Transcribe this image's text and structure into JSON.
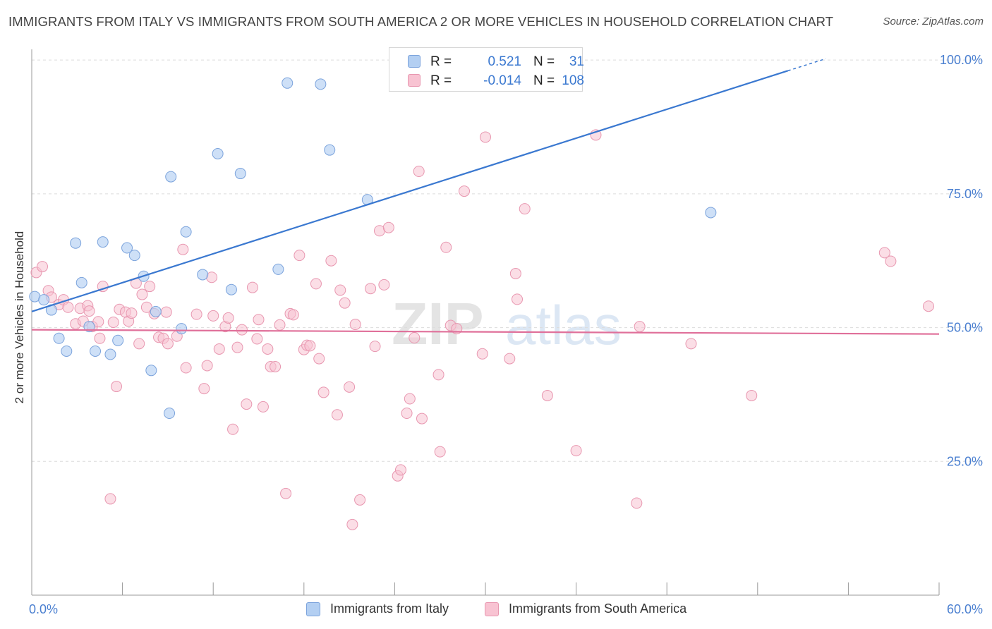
{
  "header": {
    "title": "IMMIGRANTS FROM ITALY VS IMMIGRANTS FROM SOUTH AMERICA 2 OR MORE VEHICLES IN HOUSEHOLD CORRELATION CHART",
    "source": "Source: ZipAtlas.com"
  },
  "watermark": {
    "zip": "ZIP",
    "atlas": "atlas"
  },
  "legend": {
    "rows": [
      {
        "r_label": "R =",
        "r_value": "0.521",
        "n_label": "N =",
        "n_value": "31"
      },
      {
        "r_label": "R =",
        "r_value": "-0.014",
        "n_label": "N =",
        "n_value": "108"
      }
    ]
  },
  "bottom_legend": {
    "italy": "Immigrants from Italy",
    "south_america": "Immigrants from South America"
  },
  "colors": {
    "italy_fill": "#b3cff2",
    "italy_stroke": "#7ba3dc",
    "italy_line": "#3a78d0",
    "sa_fill": "#f8c3d2",
    "sa_stroke": "#e897b0",
    "sa_line": "#e0709a",
    "grid": "#dcdcdc",
    "tick_label": "#4a7fd0",
    "r_value": "#3a78d0"
  },
  "chart_data": {
    "type": "scatter",
    "title": "IMMIGRANTS FROM ITALY VS IMMIGRANTS FROM SOUTH AMERICA 2 OR MORE VEHICLES IN HOUSEHOLD CORRELATION CHART",
    "xlabel": "",
    "ylabel": "2 or more Vehicles in Household",
    "xlim": [
      0,
      60
    ],
    "ylim": [
      0,
      102
    ],
    "x_tick_labels": [
      {
        "value": 0,
        "label": "0.0%"
      },
      {
        "value": 60,
        "label": "60.0%"
      }
    ],
    "x_minor_ticks": [
      6,
      12,
      18,
      24,
      30,
      36,
      42,
      48,
      54,
      60
    ],
    "y_tick_labels": [
      {
        "value": 25,
        "label": "25.0%"
      },
      {
        "value": 50,
        "label": "50.0%"
      },
      {
        "value": 75,
        "label": "75.0%"
      },
      {
        "value": 100,
        "label": "100.0%"
      }
    ],
    "grid": true,
    "series": [
      {
        "name": "Immigrants from Italy",
        "R": 0.521,
        "N": 31,
        "trend": {
          "x0": 0,
          "y0": 53.0,
          "x1": 50,
          "y1": 98.0,
          "dash_to_x": 52.5
        },
        "points": [
          [
            0.2,
            55.8
          ],
          [
            1.3,
            53.3
          ],
          [
            0.8,
            55.2
          ],
          [
            1.8,
            48.0
          ],
          [
            2.3,
            45.6
          ],
          [
            2.9,
            65.8
          ],
          [
            3.3,
            58.4
          ],
          [
            3.8,
            50.2
          ],
          [
            4.2,
            45.6
          ],
          [
            4.7,
            66.0
          ],
          [
            5.2,
            45.0
          ],
          [
            5.7,
            47.6
          ],
          [
            6.3,
            64.9
          ],
          [
            6.8,
            63.5
          ],
          [
            7.4,
            59.6
          ],
          [
            7.9,
            42.0
          ],
          [
            8.2,
            53.0
          ],
          [
            9.2,
            78.2
          ],
          [
            9.1,
            34.0
          ],
          [
            9.9,
            49.8
          ],
          [
            10.2,
            67.9
          ],
          [
            11.3,
            59.9
          ],
          [
            12.3,
            82.5
          ],
          [
            13.2,
            57.1
          ],
          [
            13.8,
            78.8
          ],
          [
            16.3,
            60.9
          ],
          [
            16.9,
            95.7
          ],
          [
            19.1,
            95.5
          ],
          [
            19.7,
            83.2
          ],
          [
            22.2,
            73.9
          ],
          [
            44.9,
            71.5
          ]
        ]
      },
      {
        "name": "Immigrants from South America",
        "R": -0.014,
        "N": 108,
        "trend": {
          "x0": 0,
          "y0": 49.6,
          "x1": 60,
          "y1": 48.8
        },
        "points": [
          [
            0.3,
            60.3
          ],
          [
            0.7,
            61.4
          ],
          [
            1.1,
            56.9
          ],
          [
            1.3,
            55.7
          ],
          [
            1.8,
            54.3
          ],
          [
            2.1,
            55.2
          ],
          [
            2.4,
            53.8
          ],
          [
            2.9,
            50.7
          ],
          [
            3.2,
            53.6
          ],
          [
            3.4,
            51.2
          ],
          [
            3.7,
            54.1
          ],
          [
            3.8,
            53.1
          ],
          [
            4.0,
            50.2
          ],
          [
            4.4,
            51.1
          ],
          [
            4.5,
            48.0
          ],
          [
            4.7,
            57.7
          ],
          [
            5.2,
            18.0
          ],
          [
            5.4,
            51.0
          ],
          [
            5.6,
            39.0
          ],
          [
            5.8,
            53.4
          ],
          [
            6.2,
            52.9
          ],
          [
            6.4,
            51.2
          ],
          [
            6.6,
            52.7
          ],
          [
            6.9,
            58.3
          ],
          [
            7.1,
            47.0
          ],
          [
            7.3,
            56.2
          ],
          [
            7.6,
            53.8
          ],
          [
            7.8,
            57.7
          ],
          [
            8.1,
            52.6
          ],
          [
            8.4,
            48.2
          ],
          [
            8.7,
            48.0
          ],
          [
            8.9,
            52.9
          ],
          [
            9.0,
            47.0
          ],
          [
            9.6,
            48.4
          ],
          [
            10.0,
            64.6
          ],
          [
            10.2,
            42.5
          ],
          [
            10.9,
            52.5
          ],
          [
            11.4,
            38.6
          ],
          [
            11.6,
            42.9
          ],
          [
            11.9,
            59.4
          ],
          [
            12.0,
            52.2
          ],
          [
            12.4,
            46.0
          ],
          [
            12.8,
            50.2
          ],
          [
            13.0,
            51.8
          ],
          [
            13.3,
            31.0
          ],
          [
            13.6,
            46.3
          ],
          [
            13.9,
            49.6
          ],
          [
            14.2,
            35.7
          ],
          [
            14.6,
            57.5
          ],
          [
            14.9,
            47.9
          ],
          [
            15.0,
            51.5
          ],
          [
            15.3,
            35.2
          ],
          [
            15.6,
            46.0
          ],
          [
            15.8,
            42.7
          ],
          [
            16.1,
            42.7
          ],
          [
            16.4,
            50.5
          ],
          [
            16.8,
            19.0
          ],
          [
            17.1,
            52.6
          ],
          [
            17.3,
            52.4
          ],
          [
            17.7,
            63.5
          ],
          [
            18.0,
            45.9
          ],
          [
            18.2,
            46.7
          ],
          [
            18.4,
            46.6
          ],
          [
            18.8,
            58.2
          ],
          [
            19.0,
            44.2
          ],
          [
            19.3,
            37.9
          ],
          [
            19.8,
            62.5
          ],
          [
            20.2,
            33.7
          ],
          [
            20.4,
            57.0
          ],
          [
            20.7,
            54.6
          ],
          [
            21.0,
            38.9
          ],
          [
            21.4,
            50.6
          ],
          [
            21.7,
            17.8
          ],
          [
            21.2,
            13.2
          ],
          [
            22.4,
            57.3
          ],
          [
            22.7,
            46.5
          ],
          [
            23.0,
            68.1
          ],
          [
            23.3,
            58.0
          ],
          [
            23.6,
            68.7
          ],
          [
            24.2,
            22.3
          ],
          [
            24.4,
            23.4
          ],
          [
            24.8,
            34.0
          ],
          [
            25.0,
            36.7
          ],
          [
            25.3,
            48.1
          ],
          [
            25.6,
            79.2
          ],
          [
            25.8,
            33.0
          ],
          [
            26.9,
            41.2
          ],
          [
            27.0,
            26.8
          ],
          [
            27.4,
            65.0
          ],
          [
            27.7,
            50.4
          ],
          [
            28.1,
            49.8
          ],
          [
            28.6,
            75.5
          ],
          [
            29.8,
            45.1
          ],
          [
            30.0,
            85.6
          ],
          [
            31.6,
            44.2
          ],
          [
            32.0,
            60.1
          ],
          [
            32.1,
            55.3
          ],
          [
            32.6,
            72.2
          ],
          [
            34.1,
            37.3
          ],
          [
            36.0,
            27.0
          ],
          [
            37.3,
            86.0
          ],
          [
            40.0,
            17.2
          ],
          [
            40.2,
            50.2
          ],
          [
            43.6,
            47.0
          ],
          [
            47.6,
            37.3
          ],
          [
            56.4,
            64.0
          ],
          [
            56.8,
            62.4
          ],
          [
            59.3,
            54.0
          ]
        ]
      }
    ]
  }
}
